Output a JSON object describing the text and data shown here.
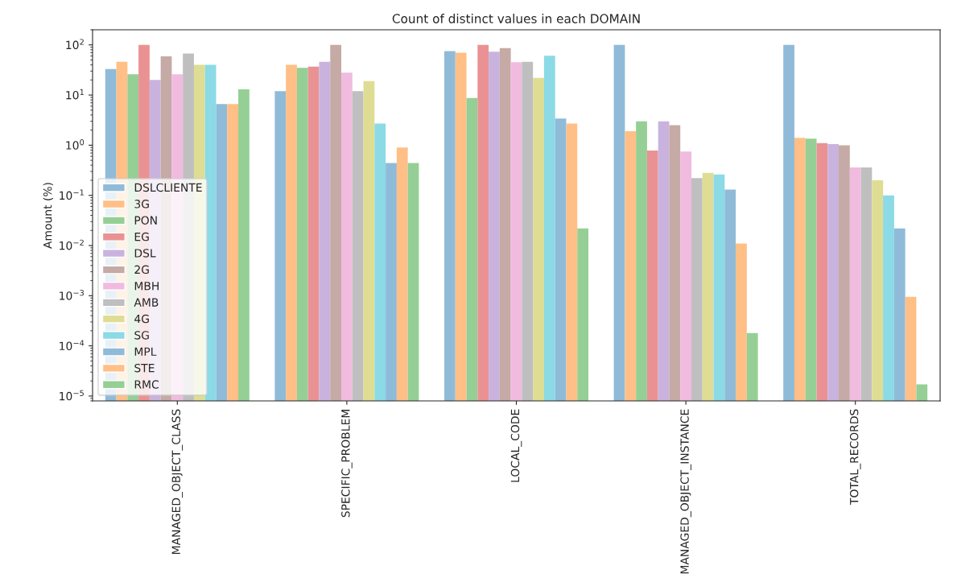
{
  "chart_data": {
    "type": "bar",
    "title": "Count of distinct values in each DOMAIN",
    "ylabel": "Amount (%)",
    "categories": [
      "MANAGED_OBJECT_CLASS",
      "SPECIFIC_PROBLEM",
      "LOCAL_CODE",
      "MANAGED_OBJECT_INSTANCE",
      "TOTAL_RECORDS"
    ],
    "log": "y",
    "ylim": [
      8e-06,
      200
    ],
    "yticks": [
      {
        "value": 1e-05,
        "label": "10$^{−5}$"
      },
      {
        "value": 0.0001,
        "label": "10$^{−4}$"
      },
      {
        "value": 0.001,
        "label": "10$^{−3}$"
      },
      {
        "value": 0.01,
        "label": "10$^{−2}$"
      },
      {
        "value": 0.1,
        "label": "10$^{−1}$"
      },
      {
        "value": 1,
        "label": "10$^{0}$"
      },
      {
        "value": 10,
        "label": "10$^{1}$"
      },
      {
        "value": 100,
        "label": "10$^{2}$"
      }
    ],
    "grid": false,
    "legend": "lower left",
    "series": [
      {
        "name": "DSLCLIENTE",
        "color": "#8fbbd9",
        "values": [
          33,
          12,
          75,
          100,
          100
        ]
      },
      {
        "name": "3G",
        "color": "#ffbf86",
        "values": [
          46,
          40,
          70,
          1.9,
          1.4
        ]
      },
      {
        "name": "PON",
        "color": "#95cf95",
        "values": [
          26,
          35,
          8.7,
          3.0,
          1.35
        ]
      },
      {
        "name": "EG",
        "color": "#ea9293",
        "values": [
          100,
          37,
          100,
          0.78,
          1.1
        ]
      },
      {
        "name": "DSL",
        "color": "#c9b3de",
        "values": [
          20,
          46,
          73,
          3.0,
          1.05
        ]
      },
      {
        "name": "2G",
        "color": "#c5aaa5",
        "values": [
          59,
          100,
          86,
          2.5,
          1.0
        ]
      },
      {
        "name": "MBH",
        "color": "#f1bbe0",
        "values": [
          26,
          28,
          45,
          0.75,
          0.36
        ]
      },
      {
        "name": "AMB",
        "color": "#bfbfbf",
        "values": [
          67,
          12,
          46,
          0.22,
          0.36
        ]
      },
      {
        "name": "4G",
        "color": "#dedd93",
        "values": [
          40,
          19,
          22,
          0.28,
          0.2
        ]
      },
      {
        "name": "SG",
        "color": "#8bdae6",
        "values": [
          40,
          2.7,
          61,
          0.26,
          0.1
        ]
      },
      {
        "name": "MPL",
        "color": "#8fbbd9",
        "values": [
          6.6,
          0.44,
          3.4,
          0.13,
          0.022
        ]
      },
      {
        "name": "STE",
        "color": "#ffbf86",
        "values": [
          6.6,
          0.9,
          2.7,
          0.011,
          0.00095
        ]
      },
      {
        "name": "RMC",
        "color": "#95cf95",
        "values": [
          13,
          0.44,
          0.022,
          0.00018,
          1.7e-05
        ]
      }
    ]
  }
}
